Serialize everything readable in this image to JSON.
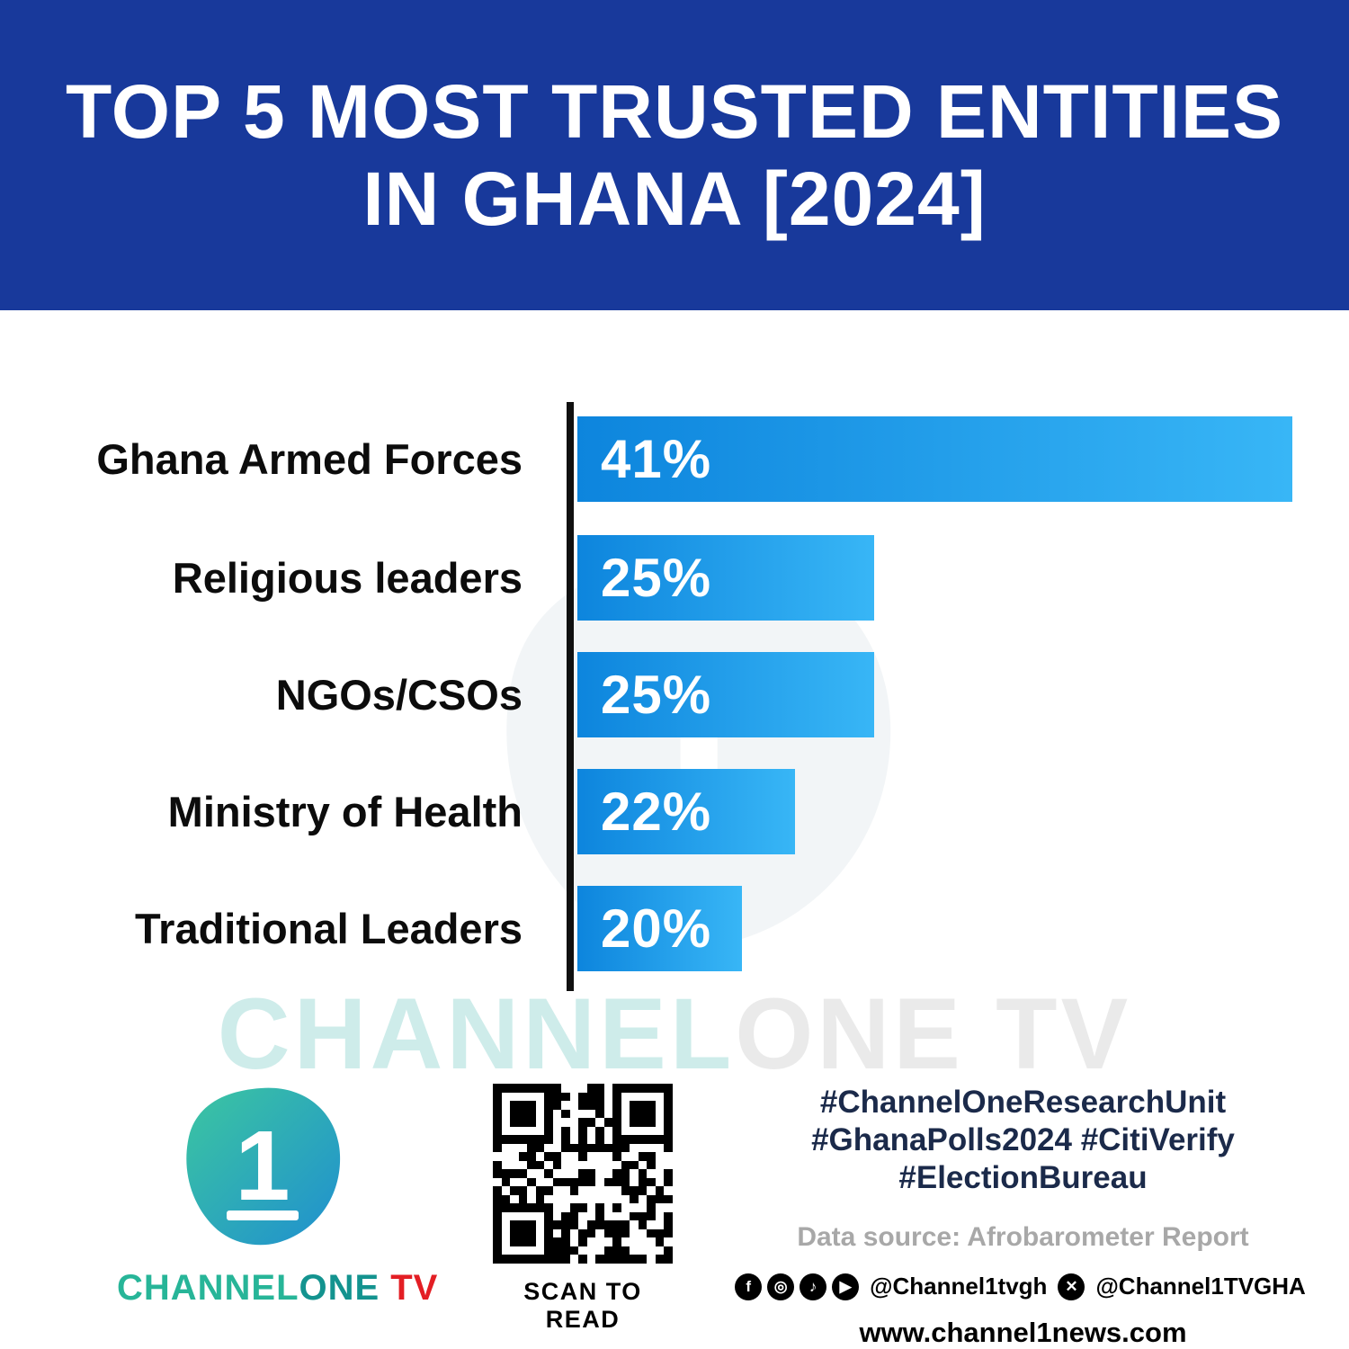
{
  "header": {
    "title_line1": "TOP 5 MOST TRUSTED ENTITIES",
    "title_line2": "IN GHANA [2024]",
    "background": "#18399b",
    "text_color": "#ffffff"
  },
  "chart_data": {
    "type": "bar",
    "orientation": "horizontal",
    "title": "TOP 5 MOST TRUSTED ENTITIES IN GHANA [2024]",
    "categories": [
      "Ghana Armed Forces",
      "Religious leaders",
      "NGOs/CSOs",
      "Ministry of Health",
      "Traditional Leaders"
    ],
    "values": [
      41,
      25,
      25,
      22,
      20
    ],
    "value_labels": [
      "41%",
      "25%",
      "25%",
      "22%",
      "20%"
    ],
    "unit": "%",
    "display_widths_pct": [
      100,
      41.5,
      41.5,
      30.5,
      23
    ],
    "bar_color_start": "#0d85dd",
    "bar_color_end": "#38b6f6",
    "axis_color": "#101010",
    "grid": false,
    "legend": "none"
  },
  "watermark": {
    "part1": "CHANNEL",
    "part2": "ONE TV"
  },
  "footer": {
    "logo": {
      "numeral": "1",
      "wordmark_channel": "CHANNEL",
      "wordmark_one": "ONE",
      "wordmark_tv": "TV"
    },
    "qr_caption": "SCAN TO READ",
    "hashtags_line1": "#ChannelOneResearchUnit",
    "hashtags_line2": "#GhanaPolls2024 #CitiVerify",
    "hashtags_line3": "#ElectionBureau",
    "data_source": "Data source: Afrobarometer Report",
    "social_icons": [
      {
        "name": "facebook-icon",
        "glyph": "f"
      },
      {
        "name": "instagram-icon",
        "glyph": "◎"
      },
      {
        "name": "tiktok-icon",
        "glyph": "♪"
      },
      {
        "name": "youtube-icon",
        "glyph": "▶"
      },
      {
        "name": "x-icon",
        "glyph": "✕"
      }
    ],
    "social_handle_1": "@Channel1tvgh",
    "social_handle_2": "@Channel1TVGHA",
    "website": "www.channel1news.com"
  }
}
